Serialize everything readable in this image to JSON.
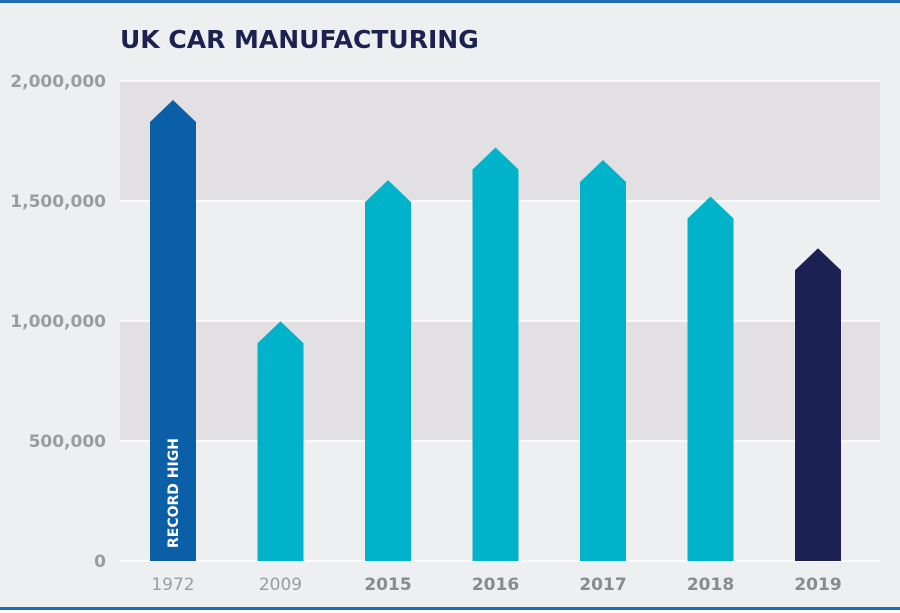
{
  "chart_data": {
    "type": "bar",
    "title": "UK CAR MANUFACTURING",
    "xlabel": "",
    "ylabel": "",
    "categories": [
      "1972",
      "2009",
      "2015",
      "2016",
      "2017",
      "2018",
      "2019"
    ],
    "values": [
      1921000,
      999000,
      1587000,
      1723000,
      1671000,
      1519000,
      1303000
    ],
    "ylim": [
      0,
      2000000
    ],
    "yticks": [
      0,
      500000,
      1000000,
      1500000,
      2000000
    ],
    "ytick_labels": [
      "0",
      "500,000",
      "1,000,000",
      "1,500,000",
      "2,000,000"
    ],
    "bar_colors": [
      "#0a5fa6",
      "#00b3cb",
      "#00b3cb",
      "#00b3cb",
      "#00b3cb",
      "#00b3cb",
      "#1b2253"
    ],
    "xtick_colors": [
      "#9b9ca0",
      "#9b9ca0",
      "#8a8b8f",
      "#8a8b8f",
      "#8a8b8f",
      "#8a8b8f",
      "#8a8b8f"
    ],
    "annotation": {
      "text": "RECORD HIGH",
      "category": "1972"
    }
  }
}
